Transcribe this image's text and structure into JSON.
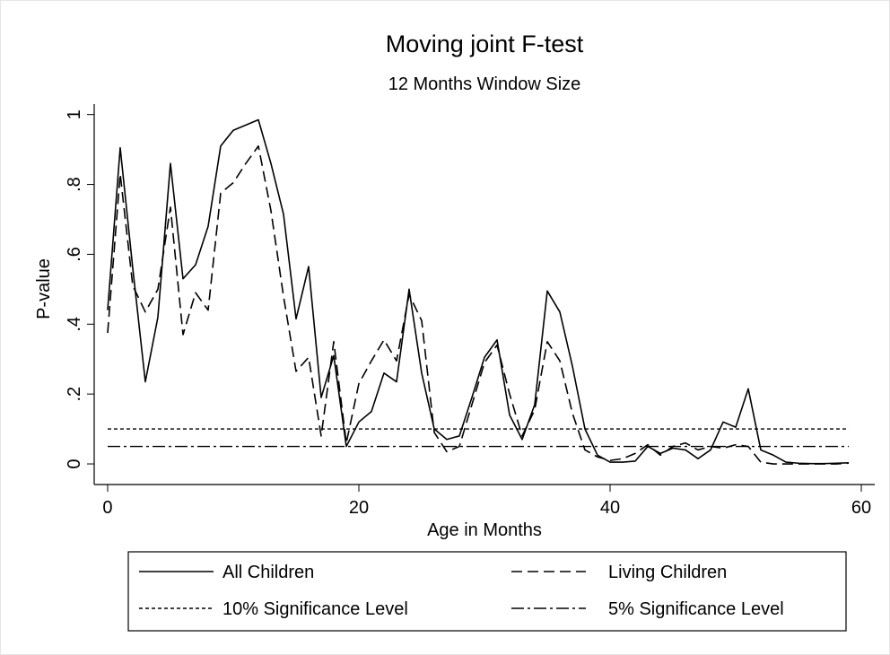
{
  "chart_data": {
    "type": "line",
    "title": "Moving joint F-test",
    "subtitle": "12 Months Window Size",
    "x_label": "Age in Months",
    "y_label": "P-value",
    "x": [
      0,
      1,
      2,
      3,
      4,
      5,
      6,
      7,
      8,
      9,
      10,
      11,
      12,
      13,
      14,
      15,
      16,
      17,
      18,
      19,
      20,
      21,
      22,
      23,
      24,
      25,
      26,
      27,
      28,
      29,
      30,
      31,
      32,
      33,
      34,
      35,
      36,
      37,
      38,
      39,
      40,
      41,
      42,
      43,
      44,
      45,
      46,
      47,
      48,
      49,
      50,
      51,
      52,
      53,
      54,
      55,
      56,
      57,
      58,
      59
    ],
    "series": [
      {
        "name": "All Children",
        "color": "#000000",
        "dash": "solid",
        "values": [
          0.44,
          0.905,
          0.56,
          0.235,
          0.42,
          0.86,
          0.53,
          0.57,
          0.68,
          0.91,
          0.955,
          0.97,
          0.985,
          0.86,
          0.715,
          0.415,
          0.565,
          0.19,
          0.31,
          0.05,
          0.12,
          0.15,
          0.26,
          0.235,
          0.5,
          0.26,
          0.1,
          0.07,
          0.08,
          0.19,
          0.305,
          0.355,
          0.14,
          0.07,
          0.17,
          0.495,
          0.435,
          0.28,
          0.1,
          0.025,
          0.005,
          0.005,
          0.008,
          0.05,
          0.03,
          0.045,
          0.04,
          0.015,
          0.04,
          0.12,
          0.105,
          0.215,
          0.04,
          0.025,
          0.005,
          0.002,
          0.001,
          0.001,
          0.002,
          0.003
        ]
      },
      {
        "name": "Living Children",
        "color": "#000000",
        "dash": "dashed",
        "values": [
          0.375,
          0.83,
          0.51,
          0.435,
          0.5,
          0.735,
          0.37,
          0.49,
          0.44,
          0.775,
          0.805,
          0.86,
          0.91,
          0.725,
          0.48,
          0.265,
          0.305,
          0.08,
          0.35,
          0.06,
          0.23,
          0.295,
          0.355,
          0.295,
          0.485,
          0.41,
          0.09,
          0.035,
          0.05,
          0.17,
          0.29,
          0.34,
          0.2,
          0.08,
          0.155,
          0.35,
          0.295,
          0.145,
          0.04,
          0.02,
          0.01,
          0.015,
          0.03,
          0.055,
          0.025,
          0.05,
          0.06,
          0.04,
          0.05,
          0.045,
          0.055,
          0.05,
          0.005,
          0,
          0,
          0,
          0,
          0,
          0,
          0.002
        ]
      }
    ],
    "reference_lines": [
      {
        "name": "10% Significance Level",
        "value": 0.1,
        "color": "#000000",
        "dash": "dotted"
      },
      {
        "name": "5% Significance Level",
        "value": 0.05,
        "color": "#000000",
        "dash": "dashdot"
      }
    ],
    "xlim": [
      -1.07,
      61.07
    ],
    "ylim": [
      -0.059,
      1.03
    ],
    "xticks": [
      0,
      20,
      40,
      60
    ],
    "yticks": [
      0,
      {
        "value": 0.2,
        "label": ".2"
      },
      {
        "value": 0.4,
        "label": ".4"
      },
      {
        "value": 0.6,
        "label": ".6"
      },
      {
        "value": 0.8,
        "label": ".8"
      },
      1
    ],
    "grid": false,
    "legend": "bottom"
  }
}
